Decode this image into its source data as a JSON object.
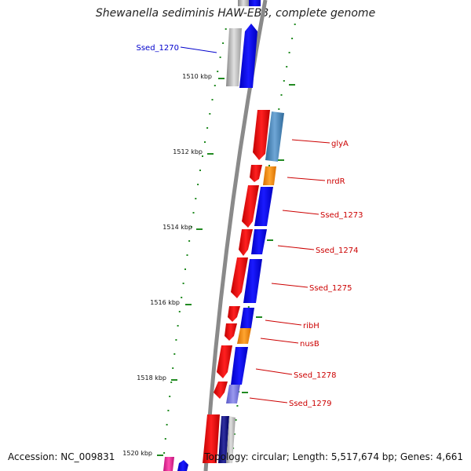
{
  "title": "Shewanella sediminis HAW-EB3, complete genome",
  "accession": "Accession: NC_009831",
  "topology": "Topology: circular; Length: 5,517,674 bp; Genes: 4,661",
  "colors": {
    "forward_gene": "#ff0000",
    "reverse_gene": "#0000ff",
    "rna_gene": "#ff8c00",
    "pseudo_gene": "#6b6bdb",
    "highlight_gene": "#4682b4",
    "tick": "#228b22",
    "label_red": "#cc0000",
    "label_blue": "#0000cc"
  },
  "ticks": [
    {
      "label": "1510 kbp"
    },
    {
      "label": "1512 kbp"
    },
    {
      "label": "1514 kbp"
    },
    {
      "label": "1516 kbp"
    },
    {
      "label": "1518 kbp"
    },
    {
      "label": "1520 kbp"
    }
  ],
  "gene_labels": [
    {
      "name": "Ssed_1270",
      "color": "blue"
    },
    {
      "name": "glyA",
      "color": "red"
    },
    {
      "name": "nrdR",
      "color": "red"
    },
    {
      "name": "Ssed_1273",
      "color": "red"
    },
    {
      "name": "Ssed_1274",
      "color": "red"
    },
    {
      "name": "Ssed_1275",
      "color": "red"
    },
    {
      "name": "ribH",
      "color": "red"
    },
    {
      "name": "nusB",
      "color": "red"
    },
    {
      "name": "Ssed_1278",
      "color": "red"
    },
    {
      "name": "Ssed_1279",
      "color": "red"
    }
  ]
}
